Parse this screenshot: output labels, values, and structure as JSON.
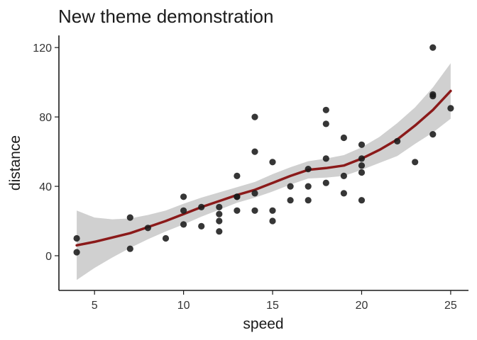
{
  "chart_data": {
    "type": "scatter",
    "title": "New theme demonstration",
    "xlabel": "speed",
    "ylabel": "distance",
    "xlim": [
      3,
      26
    ],
    "ylim": [
      -20,
      127
    ],
    "xticks": [
      5,
      10,
      15,
      20,
      25
    ],
    "yticks": [
      0,
      40,
      80,
      120
    ],
    "grid": false,
    "legend": "none",
    "colors": {
      "points": "#1a1a1a",
      "smooth_line": "#8b1a1a",
      "confidence_band": "#c8c8c8"
    },
    "points": [
      {
        "x": 4,
        "y": 2
      },
      {
        "x": 4,
        "y": 10
      },
      {
        "x": 7,
        "y": 4
      },
      {
        "x": 7,
        "y": 22
      },
      {
        "x": 8,
        "y": 16
      },
      {
        "x": 9,
        "y": 10
      },
      {
        "x": 10,
        "y": 18
      },
      {
        "x": 10,
        "y": 26
      },
      {
        "x": 10,
        "y": 34
      },
      {
        "x": 11,
        "y": 17
      },
      {
        "x": 11,
        "y": 28
      },
      {
        "x": 12,
        "y": 14
      },
      {
        "x": 12,
        "y": 20
      },
      {
        "x": 12,
        "y": 24
      },
      {
        "x": 12,
        "y": 28
      },
      {
        "x": 13,
        "y": 26
      },
      {
        "x": 13,
        "y": 34
      },
      {
        "x": 13,
        "y": 34
      },
      {
        "x": 13,
        "y": 46
      },
      {
        "x": 14,
        "y": 26
      },
      {
        "x": 14,
        "y": 36
      },
      {
        "x": 14,
        "y": 60
      },
      {
        "x": 14,
        "y": 80
      },
      {
        "x": 15,
        "y": 20
      },
      {
        "x": 15,
        "y": 26
      },
      {
        "x": 15,
        "y": 54
      },
      {
        "x": 16,
        "y": 32
      },
      {
        "x": 16,
        "y": 40
      },
      {
        "x": 17,
        "y": 32
      },
      {
        "x": 17,
        "y": 40
      },
      {
        "x": 17,
        "y": 50
      },
      {
        "x": 18,
        "y": 42
      },
      {
        "x": 18,
        "y": 56
      },
      {
        "x": 18,
        "y": 76
      },
      {
        "x": 18,
        "y": 84
      },
      {
        "x": 19,
        "y": 36
      },
      {
        "x": 19,
        "y": 46
      },
      {
        "x": 19,
        "y": 68
      },
      {
        "x": 20,
        "y": 32
      },
      {
        "x": 20,
        "y": 48
      },
      {
        "x": 20,
        "y": 52
      },
      {
        "x": 20,
        "y": 56
      },
      {
        "x": 20,
        "y": 64
      },
      {
        "x": 22,
        "y": 66
      },
      {
        "x": 23,
        "y": 54
      },
      {
        "x": 24,
        "y": 70
      },
      {
        "x": 24,
        "y": 92
      },
      {
        "x": 24,
        "y": 93
      },
      {
        "x": 24,
        "y": 120
      },
      {
        "x": 25,
        "y": 85
      }
    ],
    "smooth": {
      "x": [
        4,
        5,
        6,
        7,
        8,
        9,
        10,
        11,
        12,
        13,
        14,
        15,
        16,
        17,
        18,
        19,
        20,
        21,
        22,
        23,
        24,
        25
      ],
      "fit": [
        6,
        8,
        10.5,
        13,
        16.5,
        20,
        24,
        28,
        31.5,
        35,
        38,
        42,
        46,
        49.5,
        50.5,
        52,
        56,
        61,
        67,
        75,
        84,
        95
      ],
      "lower": [
        -14,
        -7,
        -1,
        4.5,
        9.5,
        14,
        18,
        22.5,
        26.5,
        30.5,
        33.5,
        37,
        41,
        44.5,
        45,
        46,
        49.5,
        53.5,
        57.5,
        64.5,
        71,
        79
      ],
      "upper": [
        26,
        22,
        21,
        21.5,
        23.5,
        26,
        30,
        33.5,
        36.5,
        39.5,
        42.5,
        47,
        51,
        54.5,
        56,
        58,
        62.5,
        68.5,
        76.5,
        85.5,
        97,
        111
      ]
    }
  }
}
